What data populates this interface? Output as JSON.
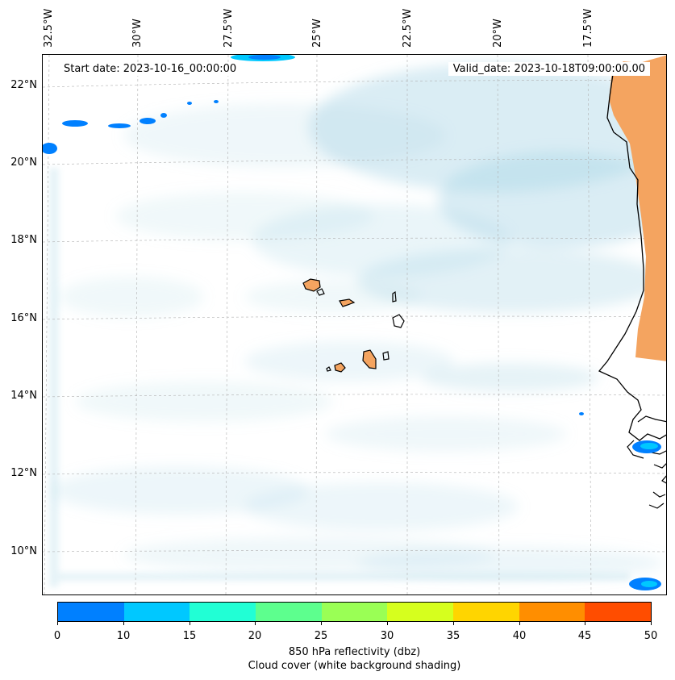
{
  "map": {
    "start_date": "Start date: 2023-10-16_00:00:00",
    "valid_date": "Valid_date: 2023-10-18T09:00:00.00",
    "lon_labels": [
      "32.5°W",
      "30°W",
      "27.5°W",
      "25°W",
      "22.5°W",
      "20°W",
      "17.5°W"
    ],
    "lat_labels": [
      "22°N",
      "20°N",
      "18°N",
      "16°N",
      "14°N",
      "12°N",
      "10°N"
    ],
    "land_color": "#f4a460",
    "cloud_color": "#add8e6",
    "coast_color": "#000000"
  },
  "colorbar": {
    "ticks": [
      "0",
      "10",
      "15",
      "20",
      "25",
      "30",
      "35",
      "40",
      "45",
      "50"
    ],
    "colors": [
      "#0080ff",
      "#00c8ff",
      "#21ffd5",
      "#5dff8e",
      "#9aff55",
      "#d6ff1e",
      "#ffd500",
      "#ff8e00",
      "#ff4d00"
    ],
    "label_line1": "850 hPa reflectivity (dbz)",
    "label_line2": "Cloud cover (white background shading)"
  }
}
